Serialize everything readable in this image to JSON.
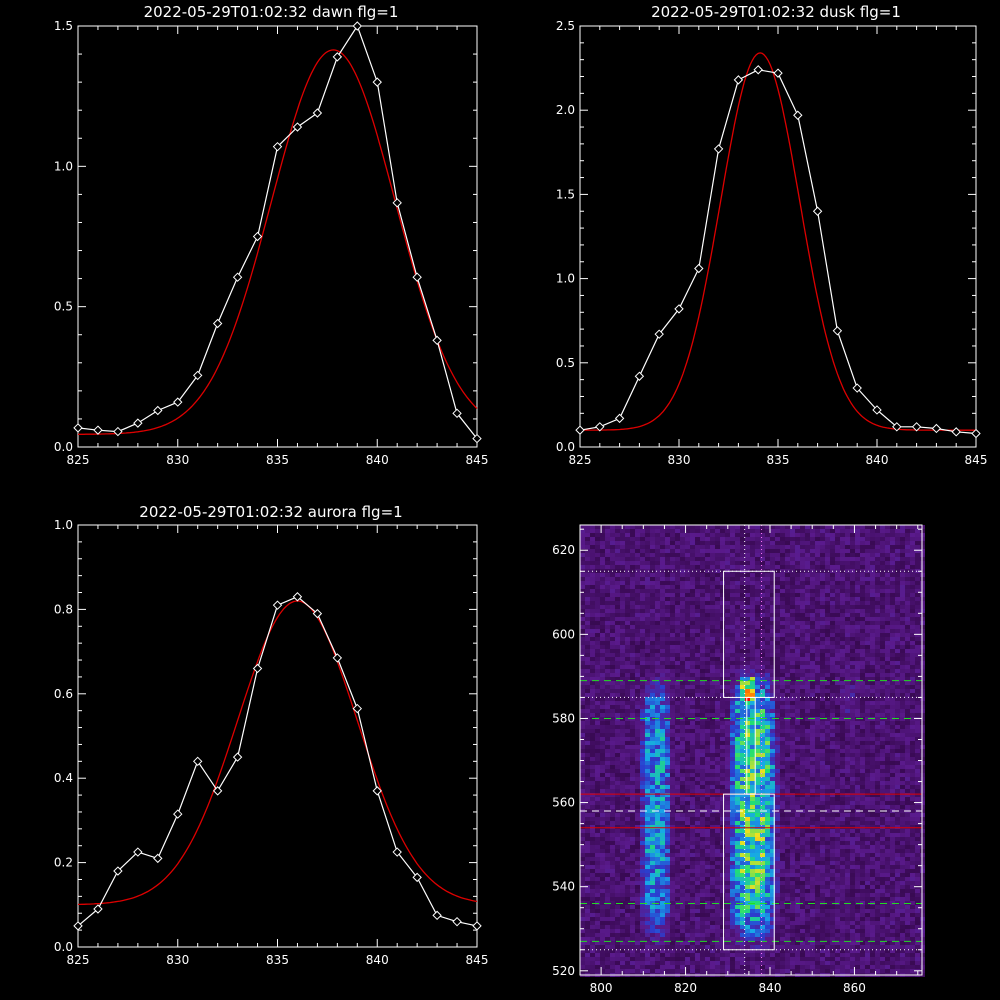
{
  "figure": {
    "background": "#000000",
    "axis_color": "#ffffff"
  },
  "chart_data": [
    {
      "type": "line",
      "title": "2022-05-29T01:02:32 dawn flg=1",
      "xlim": [
        825,
        845
      ],
      "ylim": [
        0,
        1.5
      ],
      "xticks": [
        825,
        830,
        835,
        840,
        845
      ],
      "yticks": [
        0.0,
        0.5,
        1.0,
        1.5
      ],
      "xtick_labels": [
        "825",
        "830",
        "835",
        "840",
        "845"
      ],
      "ytick_labels": [
        "0.0",
        "0.5",
        "1.0",
        "1.5"
      ],
      "series": [
        {
          "kind": "measured",
          "color": "#ffffff",
          "marker": "diamond",
          "x": [
            825,
            826,
            827,
            828,
            829,
            830,
            831,
            832,
            833,
            834,
            835,
            836,
            837,
            838,
            839,
            840,
            841,
            842,
            843,
            844,
            845
          ],
          "y": [
            0.068,
            0.06,
            0.055,
            0.085,
            0.13,
            0.16,
            0.255,
            0.44,
            0.605,
            0.75,
            1.07,
            1.14,
            1.19,
            1.39,
            1.5,
            1.3,
            0.87,
            0.605,
            0.38,
            0.12,
            0.03
          ]
        },
        {
          "kind": "fit",
          "color": "#dd0000",
          "model": {
            "amplitude": 1.37,
            "center": 837.8,
            "sigma": 3.1,
            "offset": 0.045
          }
        }
      ]
    },
    {
      "type": "line",
      "title": "2022-05-29T01:02:32 dusk flg=1",
      "xlim": [
        825,
        845
      ],
      "ylim": [
        0,
        2.5
      ],
      "xticks": [
        825,
        830,
        835,
        840,
        845
      ],
      "yticks": [
        0.0,
        0.5,
        1.0,
        1.5,
        2.0,
        2.5
      ],
      "xtick_labels": [
        "825",
        "830",
        "835",
        "840",
        "845"
      ],
      "ytick_labels": [
        "0.0",
        "0.5",
        "1.0",
        "1.5",
        "2.0",
        "2.5"
      ],
      "series": [
        {
          "kind": "measured",
          "color": "#ffffff",
          "marker": "diamond",
          "x": [
            825,
            826,
            827,
            828,
            829,
            830,
            831,
            832,
            833,
            834,
            835,
            836,
            837,
            838,
            839,
            840,
            841,
            842,
            843,
            844,
            845
          ],
          "y": [
            0.1,
            0.12,
            0.17,
            0.42,
            0.67,
            0.82,
            1.06,
            1.77,
            2.18,
            2.24,
            2.22,
            1.97,
            1.4,
            0.69,
            0.35,
            0.22,
            0.12,
            0.12,
            0.11,
            0.09,
            0.08
          ]
        },
        {
          "kind": "fit",
          "color": "#dd0000",
          "model": {
            "amplitude": 2.24,
            "center": 834.1,
            "sigma": 2.0,
            "offset": 0.1
          }
        }
      ]
    },
    {
      "type": "line",
      "title": "2022-05-29T01:02:32 aurora flg=1",
      "xlim": [
        825,
        845
      ],
      "ylim": [
        0,
        1.0
      ],
      "xticks": [
        825,
        830,
        835,
        840,
        845
      ],
      "yticks": [
        0.0,
        0.2,
        0.4,
        0.6,
        0.8,
        1.0
      ],
      "xtick_labels": [
        "825",
        "830",
        "835",
        "840",
        "845"
      ],
      "ytick_labels": [
        "0.0",
        "0.2",
        "0.4",
        "0.6",
        "0.8",
        "1.0"
      ],
      "series": [
        {
          "kind": "measured",
          "color": "#ffffff",
          "marker": "diamond",
          "x": [
            825,
            826,
            827,
            828,
            829,
            830,
            831,
            832,
            833,
            834,
            835,
            836,
            837,
            838,
            839,
            840,
            841,
            842,
            843,
            844,
            845
          ],
          "y": [
            0.05,
            0.09,
            0.18,
            0.225,
            0.21,
            0.315,
            0.44,
            0.37,
            0.45,
            0.66,
            0.81,
            0.83,
            0.79,
            0.685,
            0.565,
            0.37,
            0.225,
            0.165,
            0.075,
            0.06,
            0.05
          ]
        },
        {
          "kind": "fit",
          "color": "#dd0000",
          "model": {
            "amplitude": 0.72,
            "center": 836.0,
            "sigma": 3.0,
            "offset": 0.1
          }
        }
      ]
    },
    {
      "type": "heatmap",
      "title": "",
      "xlim": [
        795,
        876
      ],
      "ylim": [
        519,
        626
      ],
      "xticks": [
        800,
        820,
        840,
        860
      ],
      "yticks": [
        520,
        540,
        560,
        580,
        600,
        620
      ],
      "xtick_labels": [
        "800",
        "820",
        "840",
        "860"
      ],
      "ytick_labels": [
        "520",
        "540",
        "560",
        "580",
        "600",
        "620"
      ],
      "colormap": [
        "#000000",
        "#3a0a55",
        "#5a1a8c",
        "#2a3fd0",
        "#17a8e8",
        "#22e070",
        "#f0e020",
        "#ff8000",
        "#ff0000"
      ],
      "bright_regions": [
        {
          "x": [
            809,
            817
          ],
          "y": [
            525,
            592
          ],
          "peak": 0.55
        },
        {
          "x": [
            830,
            842
          ],
          "y": [
            525,
            592
          ],
          "peak": 0.7
        },
        {
          "x": [
            833,
            837
          ],
          "y": [
            583,
            590
          ],
          "peak": 1.0
        },
        {
          "x": [
            856,
            862
          ],
          "y": [
            580,
            590
          ],
          "peak": 0.3
        }
      ],
      "boxes": [
        {
          "x": [
            829,
            841
          ],
          "y": [
            585,
            615
          ],
          "color": "#ffffff"
        },
        {
          "x": [
            829,
            841
          ],
          "y": [
            525,
            562
          ],
          "color": "#ffffff"
        },
        {
          "x": [
            834.5,
            836.5
          ],
          "y": [
            562,
            585
          ],
          "color": "#ffffff"
        }
      ],
      "hlines": [
        {
          "y": 615,
          "color": "#ffffff",
          "style": "dotted"
        },
        {
          "y": 585,
          "color": "#ffffff",
          "style": "dotted"
        },
        {
          "y": 589,
          "color": "#22dd22",
          "style": "dashed"
        },
        {
          "y": 580,
          "color": "#22dd22",
          "style": "dashed"
        },
        {
          "y": 562,
          "color": "#dd0000",
          "style": "solid"
        },
        {
          "y": 558,
          "color": "#ffffff",
          "style": "dashed"
        },
        {
          "y": 554,
          "color": "#dd0000",
          "style": "solid"
        },
        {
          "y": 536,
          "color": "#22dd22",
          "style": "dashed"
        },
        {
          "y": 527,
          "color": "#22dd22",
          "style": "dashed"
        },
        {
          "y": 525,
          "color": "#ffffff",
          "style": "dotted"
        }
      ],
      "vlines": [
        {
          "x": 834,
          "color": "#ffffff",
          "style": "dotted"
        },
        {
          "x": 838,
          "color": "#ff77ff",
          "style": "dotted"
        }
      ]
    }
  ]
}
